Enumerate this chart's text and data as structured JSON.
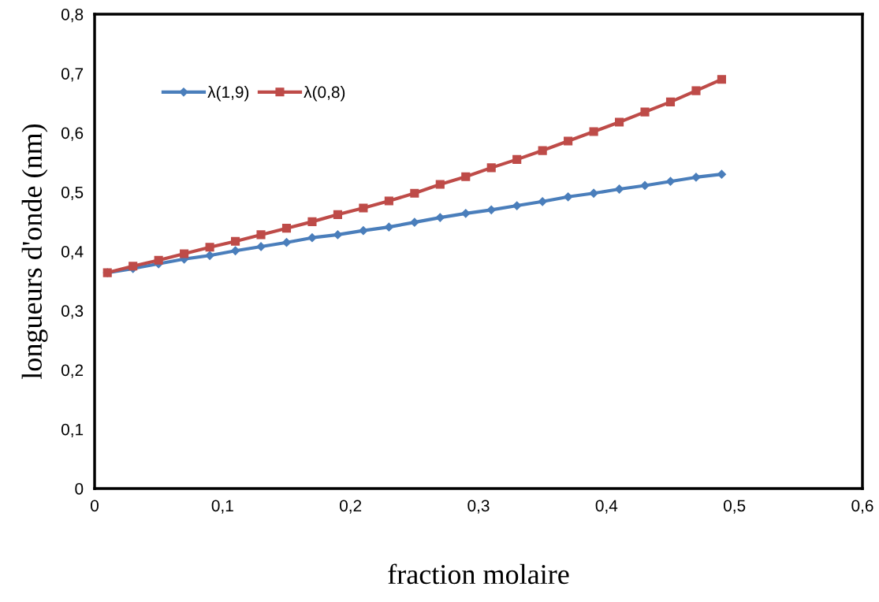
{
  "chart_data": {
    "type": "line",
    "xlabel": "fraction molaire",
    "ylabel": "longueurs d'onde (nm)",
    "xlim": [
      0,
      0.6
    ],
    "ylim": [
      0,
      0.8
    ],
    "xticks": [
      0,
      {
        "value": 0.1,
        "label": "0,1"
      },
      {
        "value": 0.2,
        "label": "0,2"
      },
      {
        "value": 0.3,
        "label": "0,3"
      },
      {
        "value": 0.4,
        "label": "0,4"
      },
      {
        "value": 0.5,
        "label": "0,5"
      },
      {
        "value": 0.6,
        "label": "0,6"
      }
    ],
    "yticks": [
      0,
      {
        "value": 0.1,
        "label": "0,1"
      },
      {
        "value": 0.2,
        "label": "0,2"
      },
      {
        "value": 0.3,
        "label": "0,3"
      },
      {
        "value": 0.4,
        "label": "0,4"
      },
      {
        "value": 0.5,
        "label": "0,5"
      },
      {
        "value": 0.6,
        "label": "0,6"
      },
      {
        "value": 0.7,
        "label": "0,7"
      },
      {
        "value": 0.8,
        "label": "0,8"
      }
    ],
    "x": [
      0.01,
      0.03,
      0.05,
      0.07,
      0.09,
      0.11,
      0.13,
      0.15,
      0.17,
      0.19,
      0.21,
      0.23,
      0.25,
      0.27,
      0.29,
      0.31,
      0.33,
      0.35,
      0.37,
      0.39,
      0.41,
      0.43,
      0.45,
      0.47,
      0.49
    ],
    "grid": false,
    "legend": "top left",
    "line_style": "solid",
    "series": [
      {
        "name": "λ(1,9)",
        "color": "#4a7ebb",
        "marker": "diamond",
        "values": [
          0.364,
          0.371,
          0.379,
          0.387,
          0.393,
          0.401,
          0.408,
          0.415,
          0.423,
          0.428,
          0.435,
          0.441,
          0.449,
          0.457,
          0.464,
          0.47,
          0.477,
          0.484,
          0.492,
          0.498,
          0.505,
          0.511,
          0.518,
          0.525,
          0.53
        ]
      },
      {
        "name": "λ(0,8)",
        "color": "#be4b48",
        "marker": "square",
        "values": [
          0.364,
          0.375,
          0.385,
          0.396,
          0.407,
          0.417,
          0.428,
          0.439,
          0.45,
          0.462,
          0.473,
          0.485,
          0.498,
          0.513,
          0.526,
          0.541,
          0.555,
          0.57,
          0.586,
          0.602,
          0.618,
          0.635,
          0.652,
          0.671,
          0.69
        ]
      }
    ]
  }
}
